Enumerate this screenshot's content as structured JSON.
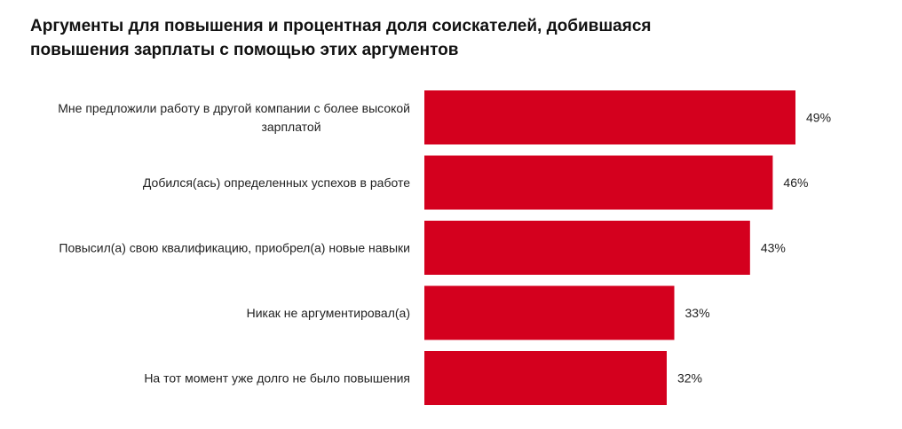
{
  "chart_data": {
    "type": "bar",
    "orientation": "horizontal",
    "title_lines": [
      "Аргументы для повышения и процентная доля соискателей, добившаяся",
      "повышения зарплаты с помощью этих аргументов"
    ],
    "categories": [
      [
        "Мне предложили работу в другой компании с более высокой",
        "зарплатой"
      ],
      [
        "Добился(ась) определенных успехов в работе"
      ],
      [
        "Повысил(а) свою квалификацию, приобрел(а) новые навыки"
      ],
      [
        "Никак не аргументировал(а)"
      ],
      [
        "На тот момент уже долго не было повышения"
      ]
    ],
    "values": [
      49,
      46,
      43,
      33,
      32
    ],
    "value_labels": [
      "49%",
      "46%",
      "43%",
      "33%",
      "32%"
    ],
    "bar_color": "#d4001e",
    "xlim": [
      0,
      49
    ],
    "grid": false,
    "legend": "none"
  }
}
